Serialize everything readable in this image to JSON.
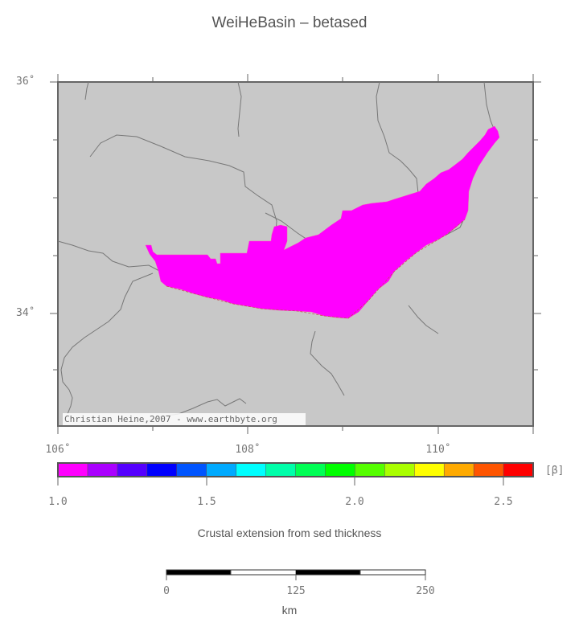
{
  "title": "WeiHeBasin – betased",
  "map": {
    "background": "#c8c8c8",
    "lat_labels": [
      {
        "id": "lat-36",
        "text": "36˚"
      },
      {
        "id": "lat-34",
        "text": "34˚"
      }
    ],
    "lon_labels": [
      {
        "id": "lon-106",
        "text": "106˚"
      },
      {
        "id": "lon-108",
        "text": "108˚"
      },
      {
        "id": "lon-110",
        "text": "110˚"
      }
    ],
    "credit": "Christian Heine,2007 - www.earthbyte.org",
    "basin_color": "#ff00ff"
  },
  "colorbar": {
    "colors": [
      "#ff00ff",
      "#aa00ff",
      "#5500ff",
      "#0000ff",
      "#0055ff",
      "#00aaff",
      "#00ffff",
      "#00ffaa",
      "#00ff55",
      "#00ff00",
      "#55ff00",
      "#aaff00",
      "#ffff00",
      "#ffaa00",
      "#ff5500",
      "#ff0000"
    ],
    "tick_labels": [
      "1.0",
      "1.5",
      "2.0",
      "2.5"
    ],
    "unit": "[β]",
    "caption": "Crustal extension from sed thickness"
  },
  "scalebar": {
    "labels": [
      "0",
      "125",
      "250"
    ],
    "unit": "km"
  }
}
